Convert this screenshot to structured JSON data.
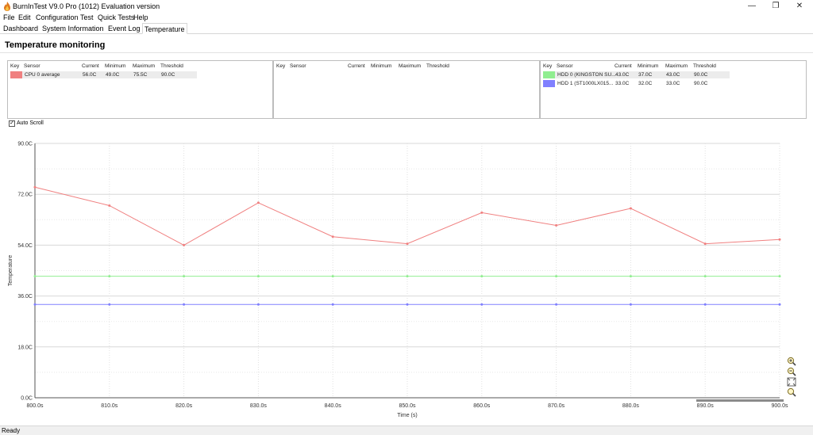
{
  "window": {
    "title": "BurnInTest V9.0 Pro (1012) Evaluation version",
    "minimize_glyph": "—",
    "maximize_glyph": "❐",
    "close_glyph": "✕"
  },
  "menu": [
    "File",
    "Edit",
    "Configuration",
    "Test",
    "Quick Tests",
    "Help"
  ],
  "tabs": [
    "Dashboard",
    "System Information",
    "Event Log",
    "Temperature"
  ],
  "active_tab": "Temperature",
  "section_title": "Temperature monitoring",
  "table_headers": [
    "Key",
    "Sensor",
    "Current",
    "Minimum",
    "Maximum",
    "Threshold"
  ],
  "panels": [
    {
      "rows": [
        {
          "color": "#f08080",
          "sensor": "CPU 0 average",
          "current": "56.0C",
          "minimum": "49.0C",
          "maximum": "75.5C",
          "threshold": "90.0C"
        }
      ]
    },
    {
      "rows": []
    },
    {
      "rows": [
        {
          "color": "#90ee90",
          "sensor": "HDD 0 (KINGSTON SU...",
          "current": "43.0C",
          "minimum": "37.0C",
          "maximum": "43.0C",
          "threshold": "90.0C"
        },
        {
          "color": "#8080ff",
          "sensor": "HDD 1 (ST1000LX015...",
          "current": "33.0C",
          "minimum": "32.0C",
          "maximum": "33.0C",
          "threshold": "90.0C"
        }
      ]
    }
  ],
  "auto_scroll": {
    "label": "Auto Scroll",
    "checked": true
  },
  "chart_data": {
    "type": "line",
    "xlabel": "Time (s)",
    "ylabel": "Temperature",
    "xlim": [
      800,
      900
    ],
    "ylim": [
      0,
      90
    ],
    "x_ticks": [
      "800.0s",
      "810.0s",
      "820.0s",
      "830.0s",
      "840.0s",
      "850.0s",
      "860.0s",
      "870.0s",
      "880.0s",
      "890.0s",
      "900.0s"
    ],
    "y_ticks": [
      "0.0C",
      "18.0C",
      "36.0C",
      "54.0C",
      "72.0C",
      "90.0C"
    ],
    "grid": true,
    "x": [
      800,
      810,
      820,
      830,
      840,
      850,
      860,
      870,
      880,
      890,
      900
    ],
    "series": [
      {
        "color": "#f08080",
        "values": [
          74.5,
          68,
          54,
          69,
          57,
          54.5,
          65.5,
          61,
          67,
          54.5,
          56
        ]
      },
      {
        "color": "#90ee90",
        "values": [
          43,
          43,
          43,
          43,
          43,
          43,
          43,
          43,
          43,
          43,
          43
        ]
      },
      {
        "color": "#8080ff",
        "values": [
          33,
          33,
          33,
          33,
          33,
          33,
          33,
          33,
          33,
          33,
          33
        ]
      }
    ]
  },
  "zoom_icons": [
    "zoom-in-icon",
    "zoom-out-icon",
    "zoom-fit-icon",
    "zoom-reset-icon"
  ],
  "status": "Ready"
}
